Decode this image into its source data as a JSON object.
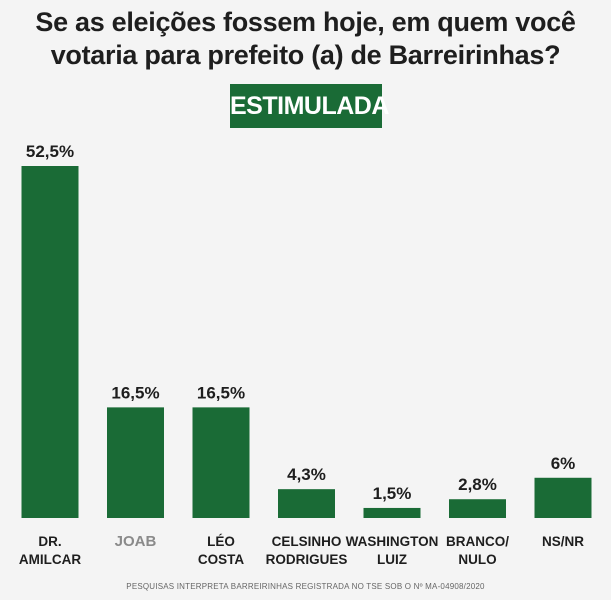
{
  "title_line1": "Se as eleições fossem hoje, em quem você",
  "title_line2": "votaria para prefeito (a) de Barreirinhas?",
  "badge": "ESTIMULADA",
  "footer": "PESQUISAS INTERPRETA BARREIRINHAS REGISTRADA NO TSE SOB O Nº MA-04908/2020",
  "colors": {
    "bar": "#1a6b36",
    "text": "#1e1e1e",
    "muted_label": "#8a8a8a"
  },
  "chart_data": {
    "type": "bar",
    "categories": [
      [
        "DR.",
        "AMILCAR"
      ],
      [
        "JOAB"
      ],
      [
        "LÉO",
        "COSTA"
      ],
      [
        "CELSINHO",
        "RODRIGUES"
      ],
      [
        "WASHINGTON",
        "LUIZ"
      ],
      [
        "BRANCO/",
        "NULO"
      ],
      [
        "NS/NR"
      ]
    ],
    "values": [
      52.5,
      16.5,
      16.5,
      4.3,
      1.5,
      2.8,
      6
    ],
    "value_labels": [
      "52,5%",
      "16,5%",
      "16,5%",
      "4,3%",
      "1,5%",
      "2,8%",
      "6%"
    ],
    "muted_categories": [
      1
    ],
    "ylim": [
      0,
      52.5
    ],
    "grid": false,
    "legend": "none"
  }
}
